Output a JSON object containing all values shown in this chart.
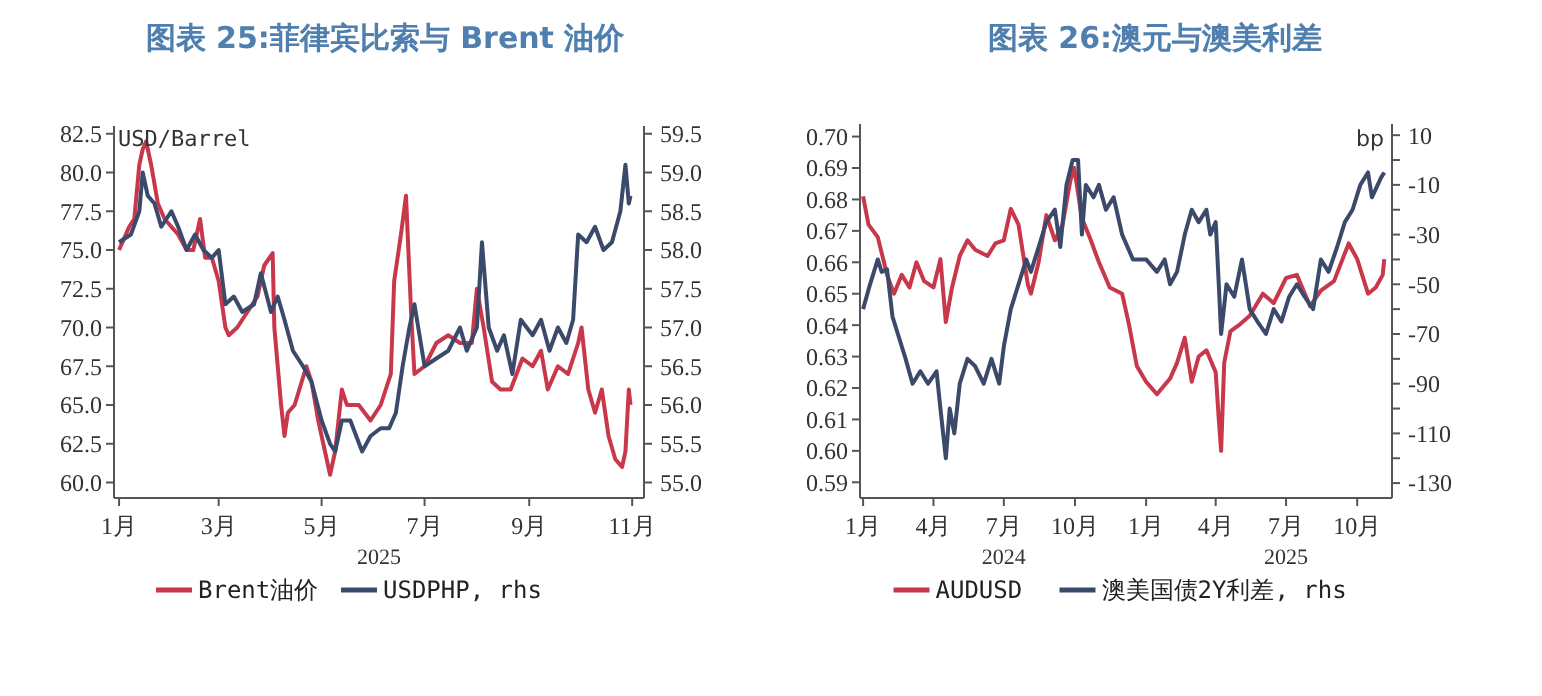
{
  "chart_data": [
    {
      "type": "line",
      "title": "图表 25:菲律宾比索与 Brent 油价",
      "xlabel": "2025",
      "ylabel": "USD/Barrel",
      "legend": "bottom",
      "xlim": [
        "2024-12-29",
        "2025-11-08"
      ],
      "xticks": [
        {
          "value": "2025-01-01",
          "label": "1月"
        },
        {
          "value": "2025-03-01",
          "label": "3月"
        },
        {
          "value": "2025-05-01",
          "label": "5月"
        },
        {
          "value": "2025-07-01",
          "label": "7月"
        },
        {
          "value": "2025-09-01",
          "label": "9月"
        },
        {
          "value": "2025-11-01",
          "label": "11月"
        }
      ],
      "ylim": [
        59,
        83
      ],
      "yticks": [
        {
          "value": 60,
          "label": "60.0"
        },
        62.5,
        {
          "value": 65,
          "label": "65.0"
        },
        67.5,
        {
          "value": 70,
          "label": "70.0"
        },
        72.5,
        {
          "value": 75,
          "label": "75.0"
        },
        77.5,
        {
          "value": 80,
          "label": "80.0"
        },
        82.5
      ],
      "y2lim": [
        54.8,
        59.6
      ],
      "y2ticks": [
        {
          "value": 55,
          "label": "55.0"
        },
        55.5,
        {
          "value": 56,
          "label": "56.0"
        },
        56.5,
        {
          "value": 57,
          "label": "57.0"
        },
        57.5,
        {
          "value": 58,
          "label": "58.0"
        },
        58.5,
        {
          "value": 59,
          "label": "59.0"
        },
        59.5
      ],
      "series": [
        {
          "name": "Brent油价",
          "color": "#c8374a",
          "x": [
            "2025-01-01",
            "2025-01-07",
            "2025-01-10",
            "2025-01-13",
            "2025-01-15",
            "2025-01-17",
            "2025-01-20",
            "2025-01-24",
            "2025-01-28",
            "2025-02-01",
            "2025-02-05",
            "2025-02-10",
            "2025-02-14",
            "2025-02-18",
            "2025-02-21",
            "2025-02-25",
            "2025-03-01",
            "2025-03-05",
            "2025-03-07",
            "2025-03-12",
            "2025-03-18",
            "2025-03-24",
            "2025-03-28",
            "2025-04-02",
            "2025-04-03",
            "2025-04-07",
            "2025-04-09",
            "2025-04-11",
            "2025-04-15",
            "2025-04-22",
            "2025-04-25",
            "2025-04-29",
            "2025-05-03",
            "2025-05-06",
            "2025-05-09",
            "2025-05-13",
            "2025-05-16",
            "2025-05-23",
            "2025-05-30",
            "2025-06-05",
            "2025-06-11",
            "2025-06-13",
            "2025-06-17",
            "2025-06-20",
            "2025-06-23",
            "2025-06-25",
            "2025-07-01",
            "2025-07-08",
            "2025-07-15",
            "2025-07-22",
            "2025-07-29",
            "2025-08-01",
            "2025-08-05",
            "2025-08-10",
            "2025-08-15",
            "2025-08-21",
            "2025-08-28",
            "2025-09-03",
            "2025-09-08",
            "2025-09-12",
            "2025-09-18",
            "2025-09-24",
            "2025-09-30",
            "2025-10-02",
            "2025-10-06",
            "2025-10-10",
            "2025-10-14",
            "2025-10-18",
            "2025-10-22",
            "2025-10-26",
            "2025-10-28",
            "2025-10-30",
            "2025-10-31"
          ],
          "values": [
            75,
            76.5,
            77,
            80.5,
            81.5,
            82,
            80.5,
            78,
            77,
            76.5,
            76,
            75,
            75,
            77,
            74.5,
            74.5,
            73,
            70,
            69.5,
            70,
            71,
            72,
            74,
            74.8,
            70,
            65,
            63,
            64.5,
            65,
            67.5,
            66.5,
            64,
            62,
            60.5,
            62,
            66,
            65,
            65,
            64,
            65,
            67,
            73,
            76,
            78.5,
            71,
            67,
            67.5,
            69,
            69.5,
            69,
            69,
            72.5,
            70,
            66.5,
            66,
            66,
            68,
            67.5,
            68.5,
            66,
            67.5,
            67,
            69,
            70,
            66,
            64.5,
            66,
            63,
            61.5,
            61,
            62,
            66,
            65
          ]
        },
        {
          "name": "USDPHP, rhs",
          "color": "#3b4a6b",
          "axis": "y2",
          "x": [
            "2025-01-01",
            "2025-01-08",
            "2025-01-13",
            "2025-01-15",
            "2025-01-18",
            "2025-01-22",
            "2025-01-26",
            "2025-02-01",
            "2025-02-05",
            "2025-02-10",
            "2025-02-15",
            "2025-02-20",
            "2025-02-25",
            "2025-03-01",
            "2025-03-05",
            "2025-03-10",
            "2025-03-15",
            "2025-03-22",
            "2025-03-26",
            "2025-04-01",
            "2025-04-05",
            "2025-04-09",
            "2025-04-14",
            "2025-04-20",
            "2025-04-25",
            "2025-05-01",
            "2025-05-06",
            "2025-05-09",
            "2025-05-13",
            "2025-05-18",
            "2025-05-25",
            "2025-05-30",
            "2025-06-05",
            "2025-06-10",
            "2025-06-14",
            "2025-06-18",
            "2025-06-22",
            "2025-06-25",
            "2025-06-28",
            "2025-07-01",
            "2025-07-08",
            "2025-07-15",
            "2025-07-22",
            "2025-07-26",
            "2025-08-01",
            "2025-08-04",
            "2025-08-08",
            "2025-08-13",
            "2025-08-17",
            "2025-08-22",
            "2025-08-27",
            "2025-09-03",
            "2025-09-08",
            "2025-09-13",
            "2025-09-18",
            "2025-09-23",
            "2025-09-27",
            "2025-09-30",
            "2025-10-05",
            "2025-10-10",
            "2025-10-15",
            "2025-10-20",
            "2025-10-25",
            "2025-10-28",
            "2025-10-30",
            "2025-10-31"
          ],
          "values": [
            58.1,
            58.2,
            58.5,
            59,
            58.7,
            58.6,
            58.3,
            58.5,
            58.3,
            58,
            58.2,
            58,
            57.9,
            58,
            57.3,
            57.4,
            57.2,
            57.3,
            57.7,
            57.2,
            57.4,
            57.1,
            56.7,
            56.5,
            56.3,
            55.8,
            55.5,
            55.4,
            55.8,
            55.8,
            55.4,
            55.6,
            55.7,
            55.7,
            55.9,
            56.5,
            57,
            57.3,
            56.9,
            56.5,
            56.6,
            56.7,
            57,
            56.7,
            57,
            58.1,
            57,
            56.7,
            56.9,
            56.4,
            57.1,
            56.9,
            57.1,
            56.7,
            57,
            56.8,
            57.1,
            58.2,
            58.1,
            58.3,
            58,
            58.1,
            58.5,
            59.1,
            58.6,
            58.7
          ]
        }
      ]
    },
    {
      "type": "line",
      "title": "图表 26:澳元与澳美利差",
      "y2label": "bp",
      "legend": "bottom",
      "annotations": [
        "2024",
        "2025"
      ],
      "xlim": [
        "2023-12-28",
        "2025-11-15"
      ],
      "xticks": [
        {
          "value": "2024-01-01",
          "label": "1月"
        },
        {
          "value": "2024-04-01",
          "label": "4月"
        },
        {
          "value": "2024-07-01",
          "label": "7月"
        },
        {
          "value": "2024-10-01",
          "label": "10月"
        },
        {
          "value": "2025-01-01",
          "label": "1月"
        },
        {
          "value": "2025-04-01",
          "label": "4月"
        },
        {
          "value": "2025-07-01",
          "label": "7月"
        },
        {
          "value": "2025-10-01",
          "label": "10月"
        }
      ],
      "ylim": [
        0.585,
        0.704
      ],
      "yticks": [
        {
          "value": 0.59,
          "label": "0.59"
        },
        {
          "value": 0.6,
          "label": "0.60"
        },
        {
          "value": 0.61,
          "label": "0.61"
        },
        {
          "value": 0.62,
          "label": "0.62"
        },
        {
          "value": 0.63,
          "label": "0.63"
        },
        {
          "value": 0.64,
          "label": "0.64"
        },
        {
          "value": 0.65,
          "label": "0.65"
        },
        {
          "value": 0.66,
          "label": "0.66"
        },
        {
          "value": 0.67,
          "label": "0.67"
        },
        {
          "value": 0.68,
          "label": "0.68"
        },
        {
          "value": 0.69,
          "label": "0.69"
        },
        {
          "value": 0.7,
          "label": "0.70"
        }
      ],
      "y2lim": [
        -136,
        14.5
      ],
      "y2ticks": [
        -130,
        {
          "value": -120,
          "label": null
        },
        -110,
        {
          "value": -100,
          "label": null
        },
        -90,
        {
          "value": -80,
          "label": null
        },
        -70,
        {
          "value": -60,
          "label": null
        },
        -50,
        {
          "value": -40,
          "label": null
        },
        -30,
        {
          "value": -20,
          "label": null
        },
        -10,
        {
          "value": 0,
          "label": null
        },
        10
      ],
      "series": [
        {
          "name": "AUDUSD",
          "color": "#c8374a",
          "x": [
            "2024-01-01",
            "2024-01-08",
            "2024-01-20",
            "2024-02-01",
            "2024-02-10",
            "2024-02-20",
            "2024-03-01",
            "2024-03-10",
            "2024-03-20",
            "2024-04-01",
            "2024-04-10",
            "2024-04-17",
            "2024-04-25",
            "2024-05-05",
            "2024-05-15",
            "2024-05-25",
            "2024-06-10",
            "2024-06-20",
            "2024-07-01",
            "2024-07-10",
            "2024-07-20",
            "2024-08-01",
            "2024-08-05",
            "2024-08-15",
            "2024-08-25",
            "2024-09-05",
            "2024-09-15",
            "2024-09-25",
            "2024-09-30",
            "2024-10-10",
            "2024-10-20",
            "2024-11-01",
            "2024-11-15",
            "2024-12-01",
            "2024-12-10",
            "2024-12-20",
            "2025-01-01",
            "2025-01-15",
            "2025-02-01",
            "2025-02-10",
            "2025-02-20",
            "2025-03-01",
            "2025-03-10",
            "2025-03-20",
            "2025-04-01",
            "2025-04-05",
            "2025-04-08",
            "2025-04-12",
            "2025-04-20",
            "2025-05-01",
            "2025-05-15",
            "2025-06-01",
            "2025-06-15",
            "2025-07-01",
            "2025-07-15",
            "2025-08-01",
            "2025-08-15",
            "2025-09-01",
            "2025-09-20",
            "2025-10-01",
            "2025-10-15",
            "2025-10-25",
            "2025-11-03",
            "2025-11-05"
          ],
          "values": [
            0.681,
            0.672,
            0.668,
            0.656,
            0.65,
            0.656,
            0.652,
            0.66,
            0.654,
            0.652,
            0.661,
            0.641,
            0.652,
            0.662,
            0.667,
            0.664,
            0.662,
            0.666,
            0.667,
            0.677,
            0.672,
            0.653,
            0.65,
            0.66,
            0.675,
            0.667,
            0.672,
            0.686,
            0.69,
            0.674,
            0.668,
            0.66,
            0.652,
            0.65,
            0.64,
            0.627,
            0.622,
            0.618,
            0.623,
            0.628,
            0.636,
            0.622,
            0.63,
            0.632,
            0.625,
            0.61,
            0.6,
            0.628,
            0.638,
            0.64,
            0.643,
            0.65,
            0.647,
            0.655,
            0.656,
            0.646,
            0.651,
            0.654,
            0.666,
            0.661,
            0.65,
            0.652,
            0.656,
            0.661
          ]
        },
        {
          "name": "澳美国债2Y利差, rhs",
          "color": "#3b4a6b",
          "axis": "y2",
          "x": [
            "2024-01-01",
            "2024-01-10",
            "2024-01-20",
            "2024-01-25",
            "2024-02-01",
            "2024-02-08",
            "2024-02-15",
            "2024-02-25",
            "2024-03-05",
            "2024-03-15",
            "2024-03-25",
            "2024-04-05",
            "2024-04-10",
            "2024-04-17",
            "2024-04-22",
            "2024-04-28",
            "2024-05-05",
            "2024-05-15",
            "2024-05-25",
            "2024-06-05",
            "2024-06-15",
            "2024-06-25",
            "2024-07-01",
            "2024-07-10",
            "2024-07-20",
            "2024-07-30",
            "2024-08-05",
            "2024-08-15",
            "2024-08-25",
            "2024-09-05",
            "2024-09-12",
            "2024-09-20",
            "2024-09-28",
            "2024-10-05",
            "2024-10-10",
            "2024-10-15",
            "2024-10-25",
            "2024-11-01",
            "2024-11-10",
            "2024-11-20",
            "2024-12-01",
            "2024-12-15",
            "2025-01-01",
            "2025-01-15",
            "2025-01-25",
            "2025-02-01",
            "2025-02-10",
            "2025-02-20",
            "2025-03-01",
            "2025-03-10",
            "2025-03-20",
            "2025-03-25",
            "2025-04-01",
            "2025-04-05",
            "2025-04-08",
            "2025-04-15",
            "2025-04-25",
            "2025-05-05",
            "2025-05-15",
            "2025-05-25",
            "2025-06-05",
            "2025-06-15",
            "2025-06-25",
            "2025-07-05",
            "2025-07-15",
            "2025-07-25",
            "2025-08-05",
            "2025-08-15",
            "2025-08-25",
            "2025-09-05",
            "2025-09-15",
            "2025-09-25",
            "2025-10-05",
            "2025-10-15",
            "2025-10-20",
            "2025-11-01",
            "2025-11-05"
          ],
          "values": [
            -60,
            -50,
            -40,
            -45,
            -44,
            -63,
            -70,
            -80,
            -90,
            -85,
            -90,
            -85,
            -100,
            -120,
            -100,
            -110,
            -90,
            -80,
            -83,
            -90,
            -80,
            -90,
            -75,
            -60,
            -50,
            -40,
            -45,
            -35,
            -25,
            -20,
            -35,
            -10,
            0,
            0,
            -30,
            -10,
            -15,
            -10,
            -20,
            -15,
            -30,
            -40,
            -40,
            -45,
            -40,
            -50,
            -45,
            -30,
            -20,
            -25,
            -20,
            -30,
            -25,
            -50,
            -70,
            -50,
            -55,
            -40,
            -60,
            -65,
            -70,
            -60,
            -65,
            -55,
            -50,
            -55,
            -60,
            -40,
            -45,
            -35,
            -25,
            -20,
            -10,
            -5,
            -15,
            -7,
            -5
          ]
        }
      ]
    }
  ]
}
